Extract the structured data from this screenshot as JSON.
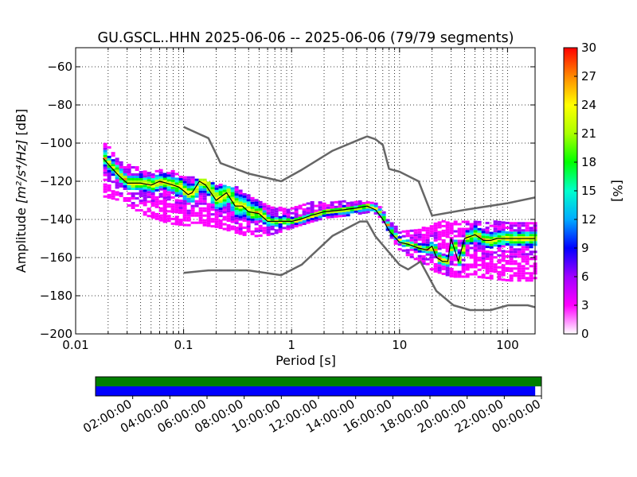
{
  "chart_data": [
    {
      "type": "heatmap",
      "title": "GU.GSCL..HHN   2025-06-06 -- 2025-06-06  (79/79 segments)",
      "xlabel": "Period [s]",
      "ylabel_prefix": "Amplitude ",
      "ylabel_units": "[m²/s⁴/Hz]",
      "ylabel_suffix": " [dB]",
      "x_scale": "log",
      "xlim": [
        0.01,
        180
      ],
      "ylim": [
        -200,
        -50
      ],
      "x_ticks": [
        0.01,
        0.1,
        1,
        10,
        100
      ],
      "x_tick_labels": [
        "0.01",
        "0.1",
        "1",
        "10",
        "100"
      ],
      "y_ticks": [
        -200,
        -180,
        -160,
        -140,
        -120,
        -100,
        -80,
        -60
      ],
      "y_tick_labels": [
        "−200",
        "−180",
        "−160",
        "−140",
        "−120",
        "−100",
        "−80",
        "−60"
      ],
      "grid": true,
      "colorbar": {
        "label": "[%]",
        "range": [
          0,
          30
        ],
        "ticks": [
          0,
          3,
          6,
          9,
          12,
          15,
          18,
          21,
          24,
          27,
          30
        ],
        "tick_labels": [
          "0",
          "3",
          "6",
          "9",
          "12",
          "15",
          "18",
          "21",
          "24",
          "27",
          "30"
        ],
        "colors": [
          "#ffffff",
          "#ff00ff",
          "#a000ff",
          "#0000ff",
          "#00aaff",
          "#00ffcc",
          "#00ff00",
          "#aaff00",
          "#ffff00",
          "#ff8800",
          "#ff0000"
        ]
      },
      "series": [
        {
          "role": "mode",
          "color": "#000000",
          "x": [
            0.018,
            0.02,
            0.025,
            0.03,
            0.04,
            0.05,
            0.06,
            0.07,
            0.08,
            0.09,
            0.1,
            0.11,
            0.12,
            0.14,
            0.16,
            0.2,
            0.25,
            0.3,
            0.35,
            0.4,
            0.5,
            0.6,
            0.8,
            1.0,
            1.2,
            1.5,
            2,
            3,
            4,
            5,
            6,
            7,
            8,
            10,
            12,
            15,
            18,
            20,
            22,
            25,
            28,
            30,
            35,
            40,
            50,
            60,
            70,
            80,
            100,
            120,
            150,
            180
          ],
          "y": [
            -108,
            -111,
            -117,
            -121,
            -121,
            -122,
            -120,
            -121,
            -122,
            -123,
            -125,
            -127,
            -126,
            -120,
            -122,
            -130,
            -126,
            -133,
            -133,
            -136,
            -137,
            -141,
            -141,
            -141,
            -140,
            -138,
            -136,
            -135,
            -134,
            -133,
            -135,
            -140,
            -146,
            -152,
            -153,
            -155,
            -156,
            -154,
            -160,
            -162,
            -162,
            -150,
            -162,
            -150,
            -148,
            -151,
            -151,
            -150,
            -150,
            -150,
            -150,
            -150
          ]
        },
        {
          "role": "high_noise_model",
          "color": "#666666",
          "x": [
            0.1,
            0.17,
            0.22,
            0.4,
            0.8,
            1.24,
            2.4,
            4.3,
            5.0,
            6.0,
            7.0,
            8.0,
            10.0,
            15.0,
            20.0,
            40.0,
            100.0,
            180.0
          ],
          "y": [
            -91.5,
            -97.4,
            -110.5,
            -116,
            -120,
            -114,
            -104,
            -98,
            -96.5,
            -98,
            -101,
            -113.5,
            -115,
            -120,
            -138,
            -135,
            -131.5,
            -128.5
          ]
        },
        {
          "role": "low_noise_model",
          "color": "#666666",
          "x": [
            0.1,
            0.17,
            0.4,
            0.8,
            1.24,
            2.4,
            4.3,
            5.0,
            6.0,
            10.0,
            12.0,
            15.6,
            21.9,
            31.6,
            45.0,
            70.0,
            101.0,
            154.0,
            180.0
          ],
          "y": [
            -168,
            -166.7,
            -166.7,
            -169.2,
            -163.7,
            -148.6,
            -141.1,
            -141.1,
            -149,
            -163.8,
            -166.2,
            -162.1,
            -177.5,
            -185,
            -187.5,
            -187.5,
            -185,
            -185,
            -186
          ]
        }
      ],
      "density_band": {
        "x": [
          0.018,
          0.025,
          0.04,
          0.07,
          0.1,
          0.15,
          0.2,
          0.3,
          0.4,
          0.6,
          0.8,
          1,
          1.5,
          2,
          3,
          4,
          5,
          6,
          7,
          8,
          10,
          15,
          20,
          30,
          50,
          100,
          180
        ],
        "low": [
          -128,
          -130,
          -137,
          -142,
          -143,
          -143,
          -144,
          -147,
          -149,
          -148,
          -146,
          -144,
          -141,
          -139,
          -138,
          -137,
          -136,
          -137,
          -142,
          -149,
          -157,
          -162,
          -167,
          -170,
          -170,
          -172,
          -172
        ],
        "high": [
          -98,
          -110,
          -113,
          -114,
          -117,
          -119,
          -121,
          -123,
          -128,
          -133,
          -134,
          -133,
          -131,
          -131,
          -130,
          -130,
          -131,
          -132,
          -136,
          -141,
          -146,
          -145,
          -142,
          -140,
          -141,
          -141,
          -141
        ],
        "core_half_width_db": [
          4,
          4,
          4,
          4,
          5,
          5,
          6,
          6,
          5,
          3,
          2,
          2,
          2,
          2,
          2,
          2,
          2,
          2,
          2,
          2,
          2,
          2,
          3,
          3,
          4,
          4,
          4
        ]
      }
    },
    {
      "type": "bar",
      "role": "data_coverage",
      "x_tick_labels": [
        "02:00:00",
        "04:00:00",
        "06:00:00",
        "08:00:00",
        "10:00:00",
        "12:00:00",
        "14:00:00",
        "16:00:00",
        "18:00:00",
        "20:00:00",
        "22:00:00",
        "00:00:00"
      ],
      "rows": [
        {
          "color": "#007f00",
          "start": 0.0,
          "end": 1.0
        },
        {
          "color": "#0000ff",
          "start": 0.0,
          "end": 0.986
        }
      ]
    }
  ]
}
